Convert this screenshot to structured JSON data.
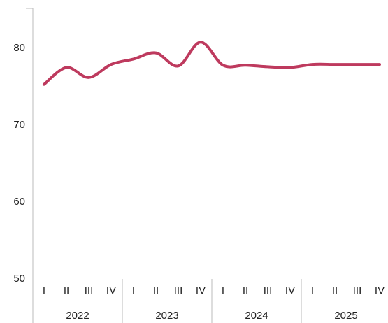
{
  "chart_data": {
    "type": "line",
    "categories": [
      "I",
      "II",
      "III",
      "IV",
      "I",
      "II",
      "III",
      "IV",
      "I",
      "II",
      "III",
      "IV",
      "I",
      "II",
      "III",
      "IV"
    ],
    "groups": [
      "2022",
      "2023",
      "2024",
      "2025"
    ],
    "series": [
      {
        "color": "#be3a5e",
        "values": [
          75.3,
          77.5,
          76.2,
          77.9,
          78.6,
          79.4,
          77.7,
          80.8,
          77.8,
          77.8,
          77.6,
          77.5,
          77.9,
          77.9,
          77.9,
          77.9
        ]
      }
    ],
    "ylim": [
      50,
      85
    ],
    "yticks": [
      50,
      60,
      70,
      80
    ],
    "grid": false
  }
}
